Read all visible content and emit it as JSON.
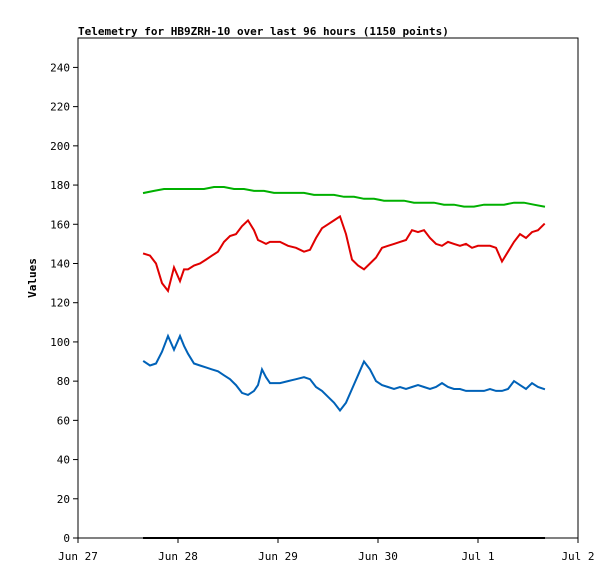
{
  "chart_data": {
    "type": "line",
    "title": "Telemetry for HB9ZRH-10 over last 96 hours (1150 points)",
    "xlabel": "",
    "ylabel": "Values",
    "ylim": [
      0,
      255
    ],
    "xlim": [
      0,
      5
    ],
    "x_ticks": [
      {
        "x": 0,
        "label": "Jun 27"
      },
      {
        "x": 1,
        "label": "Jun 28"
      },
      {
        "x": 2,
        "label": "Jun 29"
      },
      {
        "x": 3,
        "label": "Jun 30"
      },
      {
        "x": 4,
        "label": "Jul 1"
      },
      {
        "x": 5,
        "label": "Jul 2"
      }
    ],
    "y_ticks": [
      0,
      20,
      40,
      60,
      80,
      100,
      120,
      140,
      160,
      180,
      200,
      220,
      240
    ],
    "grid": false,
    "legend": "none",
    "series": [
      {
        "color": "#00b000",
        "x": [
          0.66,
          0.76,
          0.86,
          0.96,
          1.06,
          1.16,
          1.26,
          1.36,
          1.46,
          1.56,
          1.66,
          1.76,
          1.86,
          1.96,
          2.06,
          2.16,
          2.26,
          2.36,
          2.46,
          2.56,
          2.66,
          2.76,
          2.86,
          2.96,
          3.06,
          3.16,
          3.26,
          3.36,
          3.46,
          3.56,
          3.66,
          3.76,
          3.86,
          3.96,
          4.06,
          4.16,
          4.26,
          4.36,
          4.46,
          4.56,
          4.66
        ],
        "y": [
          176,
          177,
          178,
          178,
          178,
          178,
          178,
          179,
          179,
          178,
          178,
          177,
          177,
          176,
          176,
          176,
          176,
          175,
          175,
          175,
          174,
          174,
          173,
          173,
          172,
          172,
          172,
          171,
          171,
          171,
          170,
          170,
          169,
          169,
          170,
          170,
          170,
          171,
          171,
          170,
          169
        ]
      },
      {
        "color": "#e00000",
        "x": [
          0.66,
          0.72,
          0.78,
          0.84,
          0.9,
          0.96,
          1.02,
          1.06,
          1.1,
          1.16,
          1.22,
          1.28,
          1.34,
          1.4,
          1.46,
          1.52,
          1.58,
          1.64,
          1.7,
          1.76,
          1.8,
          1.84,
          1.88,
          1.92,
          1.96,
          2.02,
          2.1,
          2.18,
          2.26,
          2.32,
          2.38,
          2.44,
          2.5,
          2.56,
          2.62,
          2.68,
          2.74,
          2.8,
          2.86,
          2.92,
          2.98,
          3.04,
          3.1,
          3.16,
          3.22,
          3.28,
          3.34,
          3.4,
          3.46,
          3.52,
          3.58,
          3.64,
          3.7,
          3.76,
          3.82,
          3.88,
          3.94,
          4.0,
          4.06,
          4.12,
          4.18,
          4.24,
          4.3,
          4.36,
          4.42,
          4.48,
          4.54,
          4.6,
          4.66
        ],
        "y": [
          145,
          144,
          140,
          130,
          126,
          138,
          131,
          137,
          137,
          139,
          140,
          142,
          144,
          146,
          151,
          154,
          155,
          159,
          162,
          157,
          152,
          151,
          150,
          151,
          151,
          151,
          149,
          148,
          146,
          147,
          153,
          158,
          160,
          162,
          164,
          155,
          142,
          139,
          137,
          140,
          143,
          148,
          149,
          150,
          151,
          152,
          157,
          156,
          157,
          153,
          150,
          149,
          151,
          150,
          149,
          150,
          148,
          149,
          149,
          149,
          148,
          141,
          146,
          151,
          155,
          153,
          156,
          157,
          160
        ]
      },
      {
        "color": "#0062b8",
        "x": [
          0.66,
          0.72,
          0.78,
          0.84,
          0.9,
          0.96,
          1.02,
          1.06,
          1.1,
          1.16,
          1.22,
          1.28,
          1.34,
          1.4,
          1.46,
          1.52,
          1.58,
          1.64,
          1.7,
          1.76,
          1.8,
          1.84,
          1.88,
          1.92,
          1.96,
          2.02,
          2.1,
          2.18,
          2.26,
          2.32,
          2.38,
          2.44,
          2.5,
          2.56,
          2.62,
          2.68,
          2.74,
          2.8,
          2.86,
          2.92,
          2.98,
          3.04,
          3.1,
          3.16,
          3.22,
          3.28,
          3.34,
          3.4,
          3.46,
          3.52,
          3.58,
          3.64,
          3.7,
          3.76,
          3.82,
          3.88,
          3.94,
          4.0,
          4.06,
          4.12,
          4.18,
          4.24,
          4.3,
          4.36,
          4.42,
          4.48,
          4.54,
          4.6,
          4.66
        ],
        "y": [
          90,
          88,
          89,
          95,
          103,
          96,
          103,
          98,
          94,
          89,
          88,
          87,
          86,
          85,
          83,
          81,
          78,
          74,
          73,
          75,
          78,
          86,
          82,
          79,
          79,
          79,
          80,
          81,
          82,
          81,
          77,
          75,
          72,
          69,
          65,
          69,
          76,
          83,
          90,
          86,
          80,
          78,
          77,
          76,
          77,
          76,
          77,
          78,
          77,
          76,
          77,
          79,
          77,
          76,
          76,
          75,
          75,
          75,
          75,
          76,
          75,
          75,
          76,
          80,
          78,
          76,
          79,
          77,
          76
        ]
      },
      {
        "color": "#000000",
        "x": [
          0.66,
          4.66
        ],
        "y": [
          0,
          0
        ]
      }
    ]
  }
}
